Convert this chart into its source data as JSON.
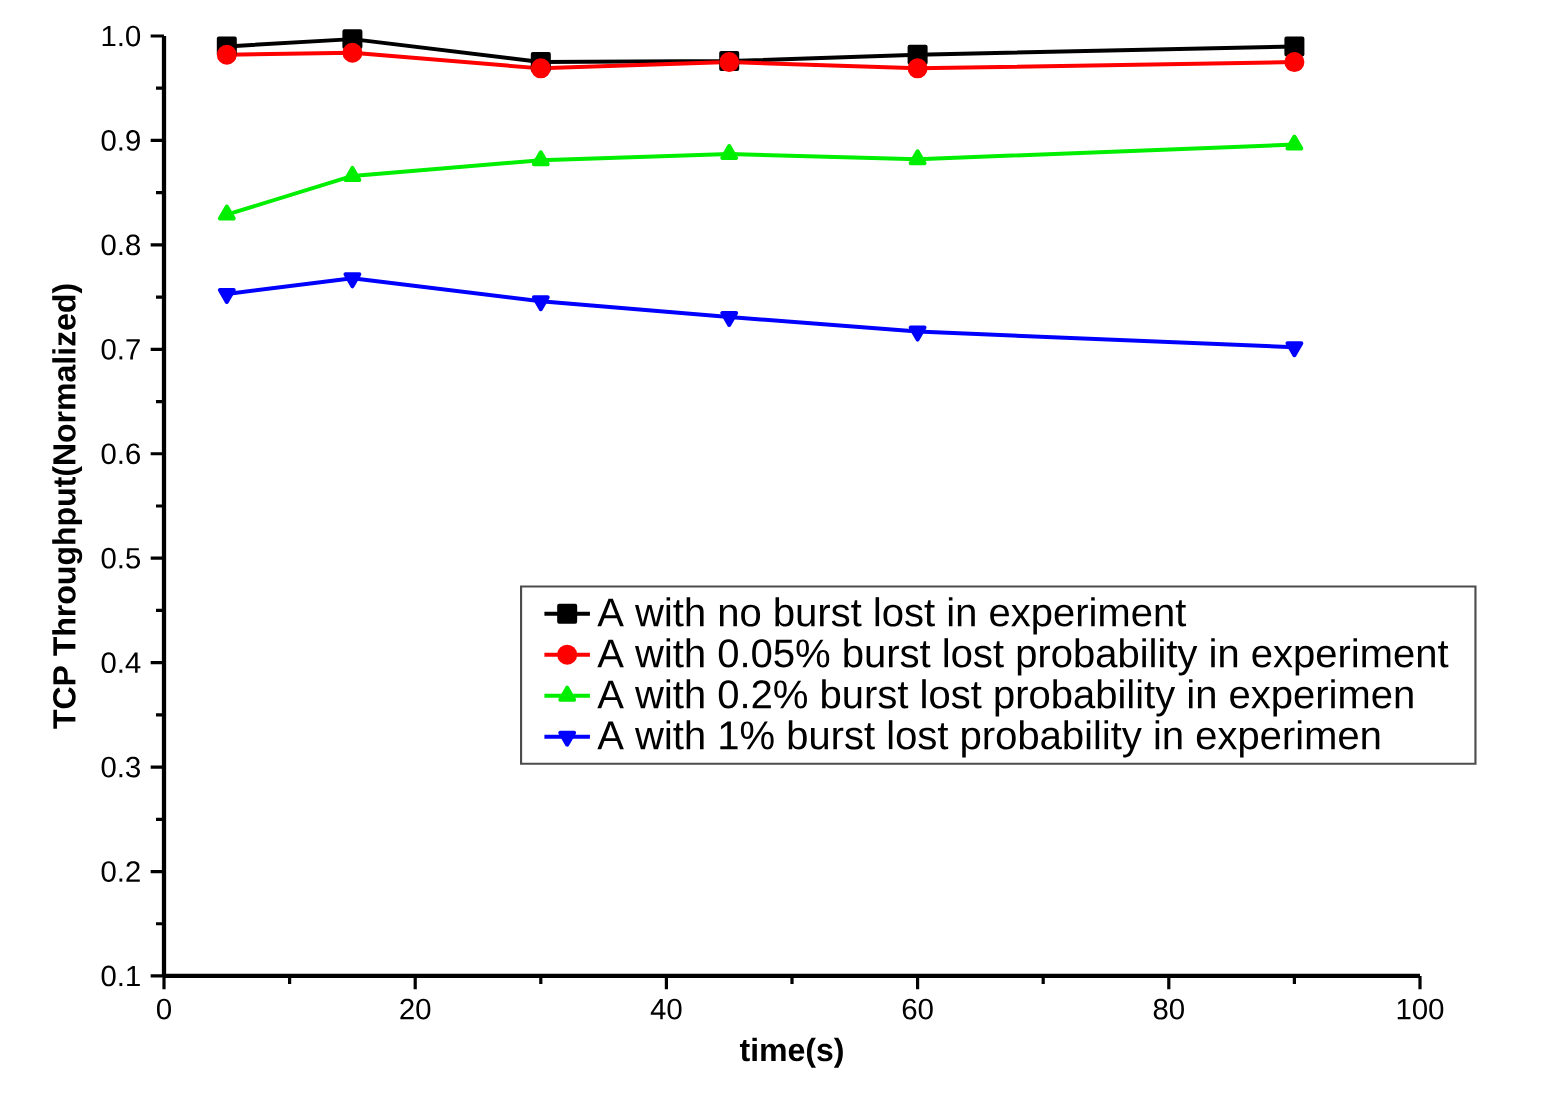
{
  "chart_data": {
    "type": "line",
    "xlabel": "time(s)",
    "ylabel": "TCP Throughput(Normalized)",
    "x": [
      5,
      15,
      30,
      45,
      60,
      90
    ],
    "series": [
      {
        "name": "A with no burst lost in experiment",
        "color": "#000000",
        "marker": "square",
        "values": [
          0.99,
          0.997,
          0.975,
          0.976,
          0.982,
          0.99
        ]
      },
      {
        "name": "A with 0.05% burst lost probability in experiment",
        "color": "#ff0000",
        "marker": "circle",
        "values": [
          0.982,
          0.984,
          0.969,
          0.975,
          0.969,
          0.975
        ]
      },
      {
        "name": "A with 0.2% burst lost probability in experimen",
        "color": "#00ee00",
        "marker": "triangle",
        "values": [
          0.829,
          0.866,
          0.881,
          0.887,
          0.882,
          0.896
        ]
      },
      {
        "name": "A with 1% burst lost probability in experimen",
        "color": "#0000ff",
        "marker": "triangle down",
        "values": [
          0.753,
          0.768,
          0.746,
          0.731,
          0.717,
          0.702
        ]
      }
    ],
    "xlim": [
      0,
      100
    ],
    "xticks": [
      0,
      20,
      40,
      60,
      80,
      100
    ],
    "ylim": [
      0.1,
      1.0
    ],
    "yticks": [
      0.1,
      0.2,
      0.3,
      0.4,
      0.5,
      0.6,
      0.7,
      0.8,
      0.9,
      {
        "value": 1.0,
        "label": "1.0"
      }
    ],
    "legend": "bottom right",
    "grid": false,
    "line_style": "solid"
  }
}
